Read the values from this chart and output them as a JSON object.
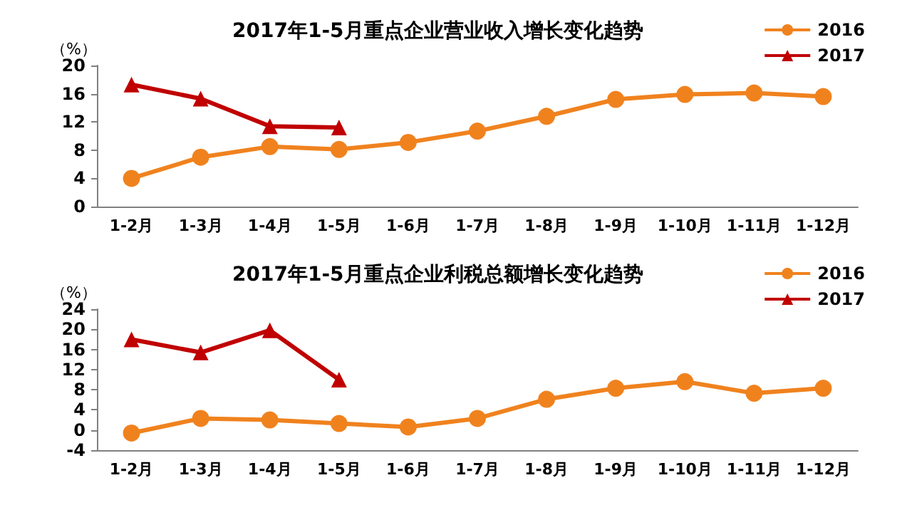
{
  "chart_data": [
    {
      "type": "line",
      "title": "2017年1-5月重点企业营业收入增长变化趋势",
      "ylabel": "（%）",
      "categories": [
        "1-2月",
        "1-3月",
        "1-4月",
        "1-5月",
        "1-6月",
        "1-7月",
        "1-8月",
        "1-9月",
        "1-10月",
        "1-11月",
        "1-12月"
      ],
      "ylim": [
        0,
        20
      ],
      "yticks": [
        0,
        4,
        8,
        12,
        16,
        20
      ],
      "grid": false,
      "legend": "top right",
      "series": [
        {
          "name": "2016",
          "color": "#f0821e",
          "marker": "circle",
          "values": [
            4.0,
            7.0,
            8.5,
            8.1,
            9.1,
            10.7,
            12.8,
            15.2,
            15.9,
            16.1,
            15.6
          ]
        },
        {
          "name": "2017",
          "color": "#c00000",
          "marker": "triangle",
          "values": [
            17.3,
            15.3,
            11.4,
            11.2,
            null,
            null,
            null,
            null,
            null,
            null,
            null
          ]
        }
      ]
    },
    {
      "type": "line",
      "title": "2017年1-5月重点企业利税总额增长变化趋势",
      "ylabel": "（%）",
      "categories": [
        "1-2月",
        "1-3月",
        "1-4月",
        "1-5月",
        "1-6月",
        "1-7月",
        "1-8月",
        "1-9月",
        "1-10月",
        "1-11月",
        "1-12月"
      ],
      "ylim": [
        -4,
        24
      ],
      "yticks": [
        -4,
        0,
        4,
        8,
        12,
        16,
        20,
        24
      ],
      "grid": false,
      "legend": "top right",
      "series": [
        {
          "name": "2016",
          "color": "#f0821e",
          "marker": "circle",
          "values": [
            -0.6,
            2.3,
            2.0,
            1.3,
            0.6,
            2.3,
            6.1,
            8.3,
            9.6,
            7.3,
            8.3
          ]
        },
        {
          "name": "2017",
          "color": "#c00000",
          "marker": "triangle",
          "values": [
            18.0,
            15.4,
            19.8,
            10.0,
            null,
            null,
            null,
            null,
            null,
            null,
            null
          ]
        }
      ]
    }
  ]
}
